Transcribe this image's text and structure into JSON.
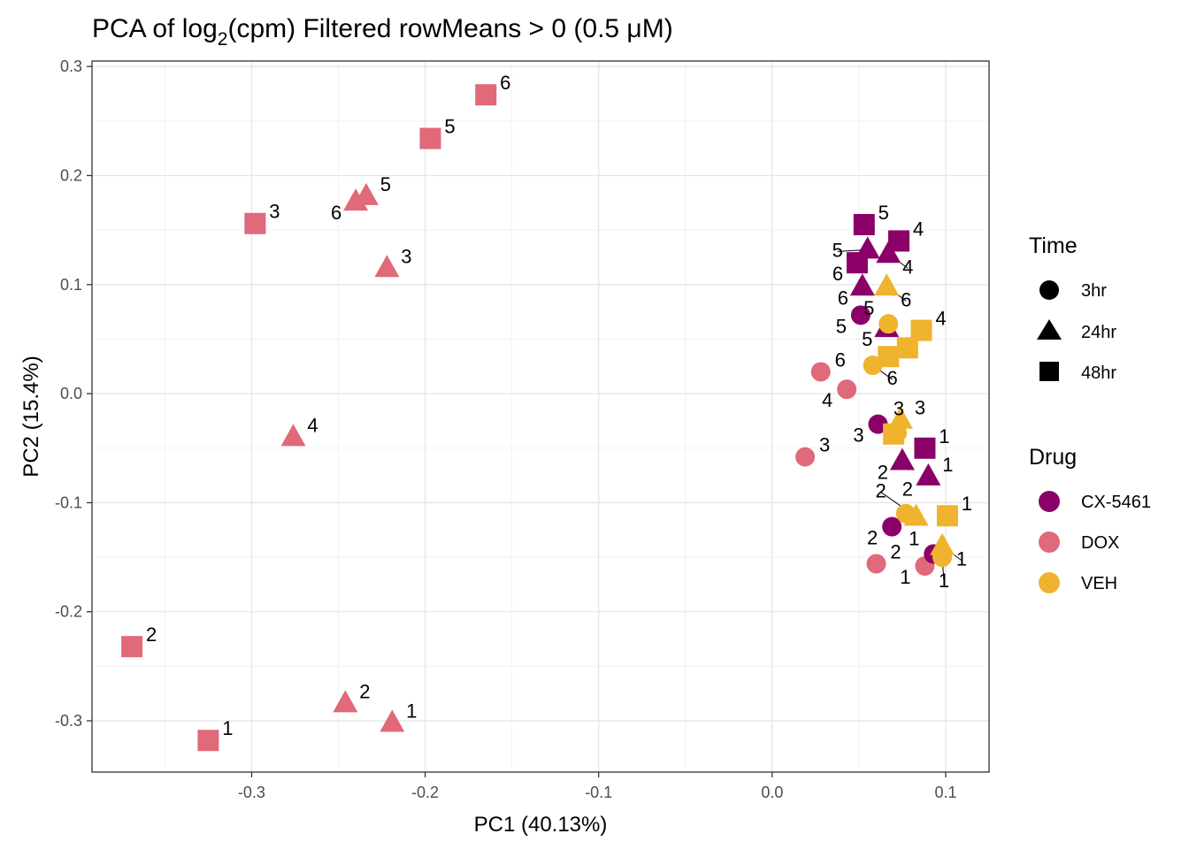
{
  "chart_data": {
    "type": "scatter",
    "title": "PCA of log2(cpm) Filtered rowMeans > 0 (0.5 μM)",
    "title_parts": {
      "prefix": "PCA of log",
      "subscript": "2",
      "suffix": "(cpm) Filtered rowMeans > 0 (0.5 μM)"
    },
    "xlabel": "PC1 (40.13%)",
    "ylabel": "PC2 (15.4%)",
    "xlim": [
      -0.392,
      0.125
    ],
    "ylim": [
      -0.347,
      0.305
    ],
    "xticks": [
      -0.3,
      -0.2,
      -0.1,
      0.0,
      0.1
    ],
    "xtick_labels": [
      "-0.3",
      "-0.2",
      "-0.1",
      "0.0",
      "0.1"
    ],
    "yticks": [
      -0.3,
      -0.2,
      -0.1,
      0.0,
      0.1,
      0.2,
      0.3
    ],
    "ytick_labels": [
      "-0.3",
      "-0.2",
      "-0.1",
      "0.0",
      "0.1",
      "0.2",
      "0.3"
    ],
    "grid": true,
    "colors": {
      "CX-5461": "#8B0068",
      "DOX": "#E0697A",
      "VEH": "#F0B32E"
    },
    "legend_time": {
      "title": "Time",
      "entries": [
        {
          "label": "3hr",
          "shape": "circle"
        },
        {
          "label": "24hr",
          "shape": "triangle"
        },
        {
          "label": "48hr",
          "shape": "square"
        }
      ]
    },
    "legend_drug": {
      "title": "Drug",
      "entries": [
        {
          "label": "CX-5461",
          "color": "#8B0068"
        },
        {
          "label": "DOX",
          "color": "#E0697A"
        },
        {
          "label": "VEH",
          "color": "#F0B32E"
        }
      ]
    },
    "points": [
      {
        "x": -0.165,
        "y": 0.274,
        "drug": "DOX",
        "time": "48hr",
        "label": "6"
      },
      {
        "x": -0.197,
        "y": 0.234,
        "drug": "DOX",
        "time": "48hr",
        "label": "5"
      },
      {
        "x": -0.298,
        "y": 0.156,
        "drug": "DOX",
        "time": "48hr",
        "label": "3"
      },
      {
        "x": -0.369,
        "y": -0.232,
        "drug": "DOX",
        "time": "48hr",
        "label": "2"
      },
      {
        "x": -0.325,
        "y": -0.318,
        "drug": "DOX",
        "time": "48hr",
        "label": "1"
      },
      {
        "x": -0.234,
        "y": 0.181,
        "drug": "DOX",
        "time": "24hr",
        "label": "5"
      },
      {
        "x": -0.24,
        "y": 0.176,
        "drug": "DOX",
        "time": "24hr",
        "label": "6"
      },
      {
        "x": -0.222,
        "y": 0.115,
        "drug": "DOX",
        "time": "24hr",
        "label": "3"
      },
      {
        "x": -0.276,
        "y": -0.04,
        "drug": "DOX",
        "time": "24hr",
        "label": "4"
      },
      {
        "x": -0.246,
        "y": -0.284,
        "drug": "DOX",
        "time": "24hr",
        "label": "2"
      },
      {
        "x": -0.219,
        "y": -0.302,
        "drug": "DOX",
        "time": "24hr",
        "label": "1"
      },
      {
        "x": 0.028,
        "y": 0.02,
        "drug": "DOX",
        "time": "3hr",
        "label": "6"
      },
      {
        "x": 0.043,
        "y": 0.004,
        "drug": "DOX",
        "time": "3hr",
        "label": "4"
      },
      {
        "x": 0.019,
        "y": -0.058,
        "drug": "DOX",
        "time": "3hr",
        "label": "3"
      },
      {
        "x": 0.06,
        "y": -0.156,
        "drug": "DOX",
        "time": "3hr",
        "label": "2"
      },
      {
        "x": 0.088,
        "y": -0.158,
        "drug": "DOX",
        "time": "3hr",
        "label": "1"
      },
      {
        "x": 0.053,
        "y": 0.155,
        "drug": "CX-5461",
        "time": "48hr",
        "label": "5"
      },
      {
        "x": 0.073,
        "y": 0.14,
        "drug": "CX-5461",
        "time": "48hr",
        "label": "4"
      },
      {
        "x": 0.049,
        "y": 0.12,
        "drug": "CX-5461",
        "time": "48hr",
        "label": "6"
      },
      {
        "x": 0.088,
        "y": -0.05,
        "drug": "CX-5461",
        "time": "48hr",
        "label": "1"
      },
      {
        "x": 0.055,
        "y": 0.132,
        "drug": "CX-5461",
        "time": "24hr",
        "label": "5"
      },
      {
        "x": 0.067,
        "y": 0.128,
        "drug": "CX-5461",
        "time": "24hr",
        "label": "4"
      },
      {
        "x": 0.052,
        "y": 0.098,
        "drug": "CX-5461",
        "time": "24hr",
        "label": "6"
      },
      {
        "x": 0.066,
        "y": 0.06,
        "drug": "CX-5461",
        "time": "24hr",
        "label": "5"
      },
      {
        "x": 0.075,
        "y": -0.062,
        "drug": "CX-5461",
        "time": "24hr",
        "label": "2"
      },
      {
        "x": 0.09,
        "y": -0.076,
        "drug": "CX-5461",
        "time": "24hr",
        "label": "1"
      },
      {
        "x": 0.051,
        "y": 0.072,
        "drug": "CX-5461",
        "time": "3hr",
        "label": "5"
      },
      {
        "x": 0.061,
        "y": -0.028,
        "drug": "CX-5461",
        "time": "3hr",
        "label": "3"
      },
      {
        "x": 0.069,
        "y": -0.122,
        "drug": "CX-5461",
        "time": "3hr",
        "label": "2"
      },
      {
        "x": 0.093,
        "y": -0.147,
        "drug": "CX-5461",
        "time": "3hr",
        "label": "1"
      },
      {
        "x": 0.086,
        "y": 0.058,
        "drug": "VEH",
        "time": "48hr",
        "label": "4"
      },
      {
        "x": 0.078,
        "y": 0.042,
        "drug": "VEH",
        "time": "48hr",
        "label": ""
      },
      {
        "x": 0.067,
        "y": 0.034,
        "drug": "VEH",
        "time": "48hr",
        "label": ""
      },
      {
        "x": 0.07,
        "y": -0.037,
        "drug": "VEH",
        "time": "48hr",
        "label": ""
      },
      {
        "x": 0.101,
        "y": -0.112,
        "drug": "VEH",
        "time": "48hr",
        "label": "1"
      },
      {
        "x": 0.066,
        "y": 0.098,
        "drug": "VEH",
        "time": "24hr",
        "label": "6"
      },
      {
        "x": 0.074,
        "y": -0.024,
        "drug": "VEH",
        "time": "24hr",
        "label": "3"
      },
      {
        "x": 0.083,
        "y": -0.113,
        "drug": "VEH",
        "time": "24hr",
        "label": "2"
      },
      {
        "x": 0.098,
        "y": -0.14,
        "drug": "VEH",
        "time": "24hr",
        "label": "1"
      },
      {
        "x": 0.067,
        "y": 0.064,
        "drug": "VEH",
        "time": "3hr",
        "label": "5"
      },
      {
        "x": 0.058,
        "y": 0.026,
        "drug": "VEH",
        "time": "3hr",
        "label": "6"
      },
      {
        "x": 0.072,
        "y": -0.036,
        "drug": "VEH",
        "time": "3hr",
        "label": "3"
      },
      {
        "x": 0.077,
        "y": -0.11,
        "drug": "VEH",
        "time": "3hr",
        "label": "2"
      },
      {
        "x": 0.098,
        "y": -0.15,
        "drug": "VEH",
        "time": "3hr",
        "label": "1"
      }
    ]
  }
}
